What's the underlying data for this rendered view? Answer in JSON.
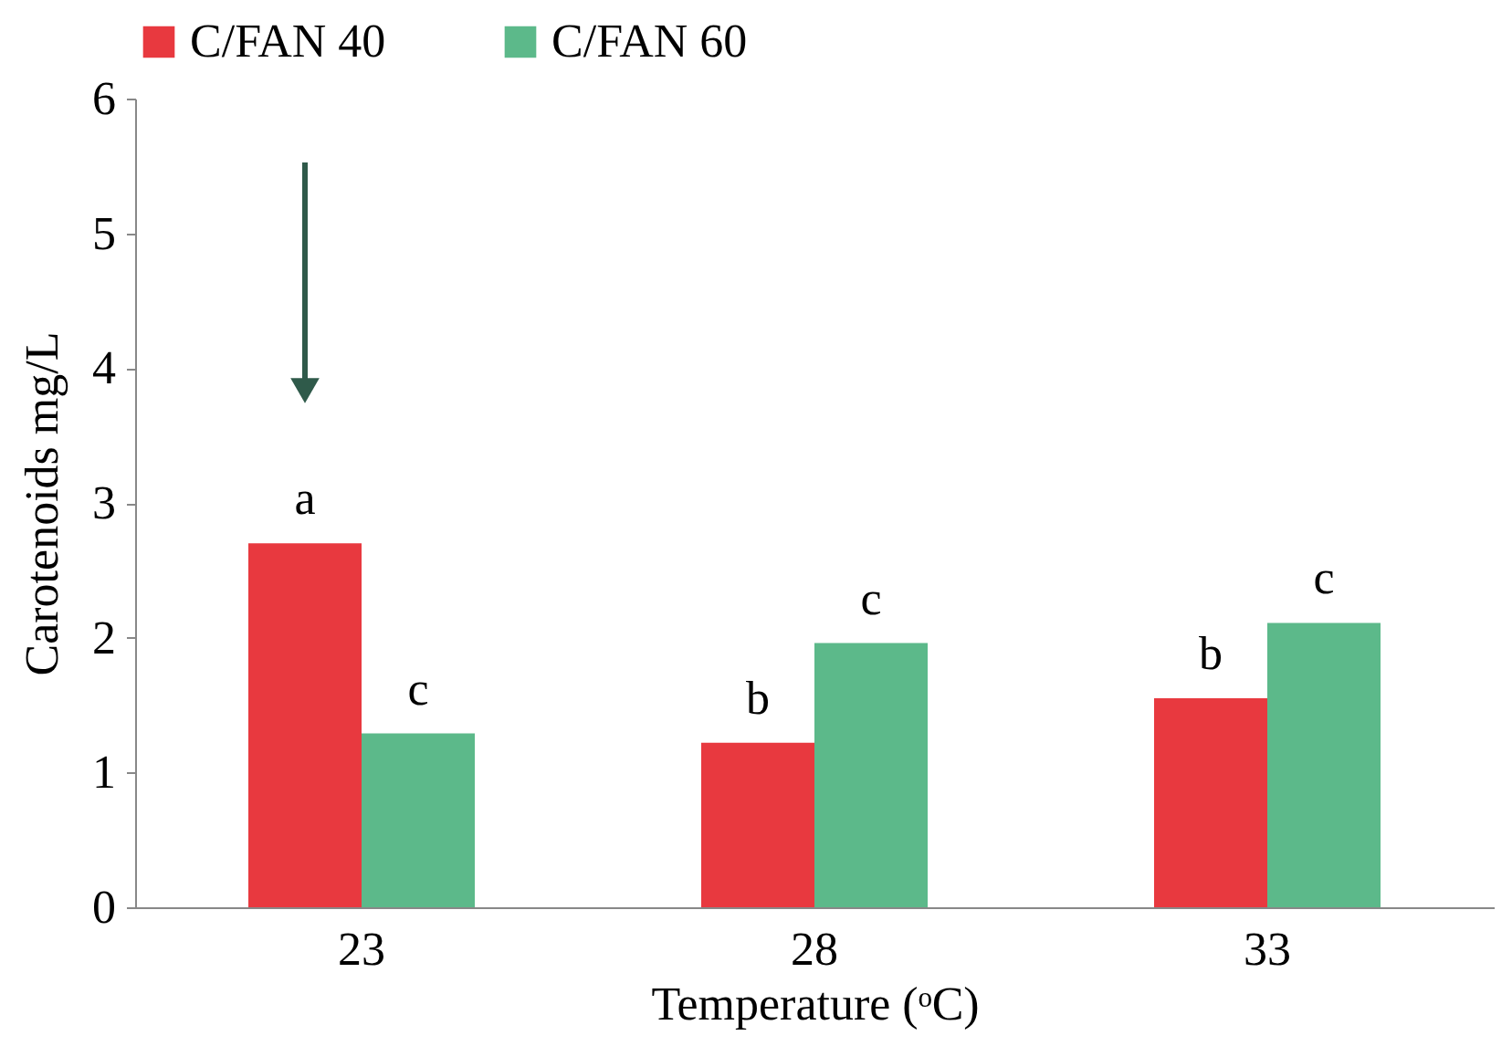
{
  "chart_data": {
    "type": "bar",
    "xlabel": "Temperature (ᵒC)",
    "ylabel": "Carotenoids mg/L",
    "categories": [
      "23",
      "28",
      "33"
    ],
    "series": [
      {
        "name": "C/FAN 40",
        "color": "#e8393f",
        "values": [
          2.7,
          1.22,
          1.55
        ]
      },
      {
        "name": "C/FAN 60",
        "color": "#5cb98a",
        "values": [
          1.29,
          1.96,
          2.11
        ]
      }
    ],
    "ylim": [
      0,
      6
    ],
    "yticks": [
      0,
      1,
      2,
      3,
      4,
      5,
      6
    ],
    "grid": false,
    "legend": "top",
    "annotations": [
      {
        "text": "a",
        "x": "23",
        "y": 2.7
      },
      {
        "text": "c",
        "x": "23",
        "y": 1.29
      },
      {
        "text": "b",
        "x": "28",
        "y": 1.22
      },
      {
        "text": "c",
        "x": "28",
        "y": 1.96
      },
      {
        "text": "b",
        "x": "33",
        "y": 1.55
      },
      {
        "text": "c",
        "x": "33",
        "y": 2.11
      }
    ]
  }
}
